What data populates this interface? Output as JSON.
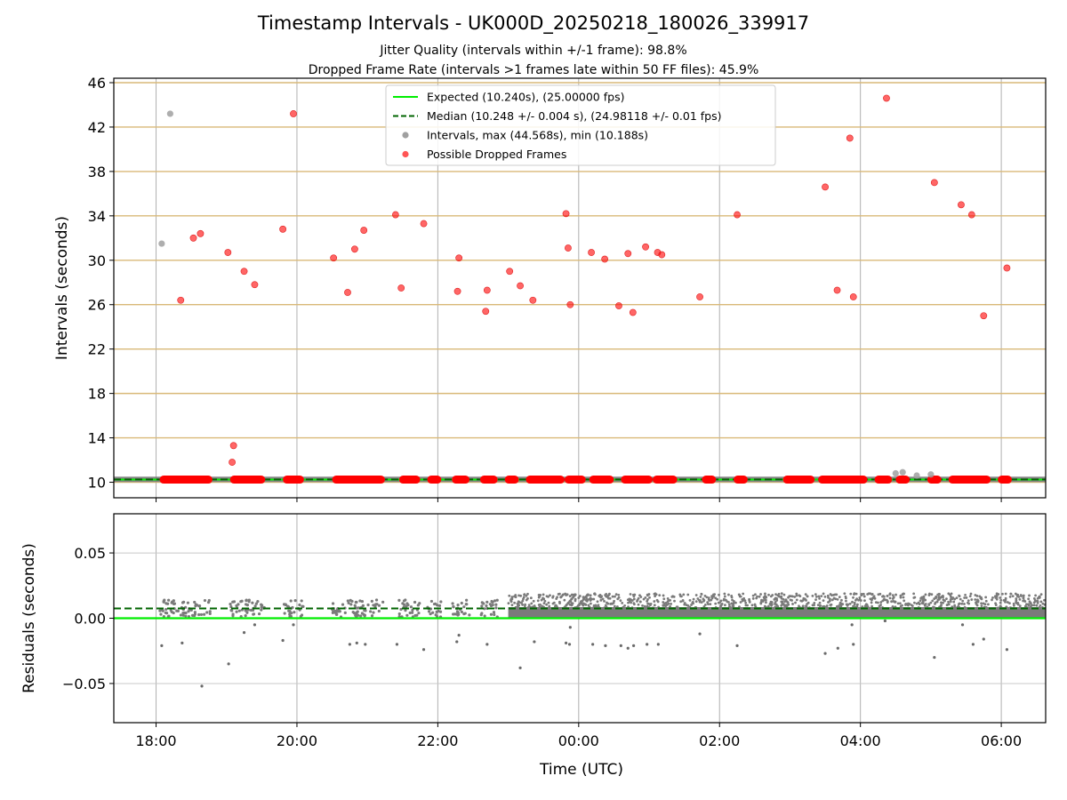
{
  "chart_data": [
    {
      "type": "scatter",
      "title": "Timestamp Intervals - UK000D_20250218_180026_339917",
      "subtitle_lines": [
        "Jitter Quality (intervals within +/-1 frame): 98.8%",
        "Dropped Frame Rate (intervals >1 frames late within 50 FF files): 45.9%"
      ],
      "ylabel": "Intervals (seconds)",
      "ylim": [
        8.6,
        46.4
      ],
      "yticks": [
        10,
        14,
        18,
        22,
        26,
        30,
        34,
        38,
        42,
        46
      ],
      "xlim": [
        -0.6,
        12.63
      ],
      "x_unit": "hours after 18:00 UTC",
      "xticks": [
        {
          "value": 0,
          "label": "18:00"
        },
        {
          "value": 2,
          "label": "20:00"
        },
        {
          "value": 4,
          "label": "22:00"
        },
        {
          "value": 6,
          "label": "00:00"
        },
        {
          "value": 8,
          "label": "02:00"
        },
        {
          "value": 10,
          "label": "04:00"
        },
        {
          "value": 12,
          "label": "06:00"
        }
      ],
      "grid": true,
      "legend_position": "top-center",
      "legend": [
        {
          "label": "Expected (10.240s), (25.00000 fps)",
          "style": "line",
          "color": "#00ee00"
        },
        {
          "label": "Median (10.248 +/- 0.004 s), (24.98118 +/- 0.01 fps)",
          "style": "dashed",
          "color": "#006400"
        },
        {
          "label": "Intervals, max (44.568s), min (10.188s)",
          "style": "marker",
          "color": "#a0a0a0"
        },
        {
          "label": "Possible Dropped Frames",
          "style": "marker",
          "color": "#ff5555"
        }
      ],
      "expected_interval": 10.24,
      "median_interval": 10.248,
      "band_segments_hours": [
        [
          0.05,
          0.8
        ],
        [
          1.05,
          1.55
        ],
        [
          1.8,
          2.1
        ],
        [
          2.5,
          3.25
        ],
        [
          3.45,
          3.75
        ],
        [
          3.85,
          4.05
        ],
        [
          4.2,
          4.45
        ],
        [
          4.6,
          4.85
        ],
        [
          4.95,
          5.15
        ],
        [
          5.25,
          5.8
        ],
        [
          5.8,
          6.1
        ],
        [
          6.15,
          6.5
        ],
        [
          6.6,
          7.05
        ],
        [
          7.05,
          7.4
        ],
        [
          7.75,
          7.95
        ],
        [
          8.2,
          8.4
        ],
        [
          8.9,
          9.35
        ],
        [
          9.4,
          10.1
        ],
        [
          10.2,
          10.45
        ],
        [
          10.5,
          10.7
        ],
        [
          10.95,
          11.15
        ],
        [
          11.25,
          11.85
        ],
        [
          11.95,
          12.15
        ]
      ],
      "dropped_frames": [
        {
          "x": 0.35,
          "y": 26.4
        },
        {
          "x": 0.53,
          "y": 32.0
        },
        {
          "x": 0.63,
          "y": 32.4
        },
        {
          "x": 1.02,
          "y": 30.7
        },
        {
          "x": 1.08,
          "y": 11.8
        },
        {
          "x": 1.1,
          "y": 13.3
        },
        {
          "x": 1.25,
          "y": 29.0
        },
        {
          "x": 1.4,
          "y": 27.8
        },
        {
          "x": 1.8,
          "y": 32.8
        },
        {
          "x": 1.95,
          "y": 43.2
        },
        {
          "x": 2.52,
          "y": 30.2
        },
        {
          "x": 2.72,
          "y": 27.1
        },
        {
          "x": 2.82,
          "y": 31.0
        },
        {
          "x": 2.95,
          "y": 32.7
        },
        {
          "x": 3.4,
          "y": 34.1
        },
        {
          "x": 3.48,
          "y": 27.5
        },
        {
          "x": 3.8,
          "y": 33.3
        },
        {
          "x": 4.28,
          "y": 27.2
        },
        {
          "x": 4.3,
          "y": 30.2
        },
        {
          "x": 4.68,
          "y": 25.4
        },
        {
          "x": 4.7,
          "y": 27.3
        },
        {
          "x": 5.02,
          "y": 29.0
        },
        {
          "x": 5.17,
          "y": 27.7
        },
        {
          "x": 5.35,
          "y": 26.4
        },
        {
          "x": 5.82,
          "y": 34.2
        },
        {
          "x": 5.85,
          "y": 31.1
        },
        {
          "x": 5.88,
          "y": 26.0
        },
        {
          "x": 6.18,
          "y": 30.7
        },
        {
          "x": 6.37,
          "y": 30.1
        },
        {
          "x": 6.57,
          "y": 25.9
        },
        {
          "x": 6.7,
          "y": 30.6
        },
        {
          "x": 6.77,
          "y": 25.3
        },
        {
          "x": 6.95,
          "y": 31.2
        },
        {
          "x": 7.12,
          "y": 30.7
        },
        {
          "x": 7.18,
          "y": 30.5
        },
        {
          "x": 7.72,
          "y": 26.7
        },
        {
          "x": 8.25,
          "y": 34.1
        },
        {
          "x": 9.5,
          "y": 36.6
        },
        {
          "x": 9.67,
          "y": 27.3
        },
        {
          "x": 9.85,
          "y": 41.0
        },
        {
          "x": 9.9,
          "y": 26.7
        },
        {
          "x": 10.37,
          "y": 44.6
        },
        {
          "x": 11.05,
          "y": 37.0
        },
        {
          "x": 11.43,
          "y": 35.0
        },
        {
          "x": 11.58,
          "y": 34.1
        },
        {
          "x": 11.75,
          "y": 25.0
        },
        {
          "x": 12.08,
          "y": 29.3
        }
      ],
      "gray_intervals": [
        {
          "x": 0.08,
          "y": 31.5
        },
        {
          "x": 0.2,
          "y": 43.2
        },
        {
          "x": 10.5,
          "y": 10.8
        },
        {
          "x": 10.6,
          "y": 10.9
        },
        {
          "x": 10.8,
          "y": 10.6
        },
        {
          "x": 11.0,
          "y": 10.7
        }
      ]
    },
    {
      "type": "scatter",
      "xlabel": "Time (UTC)",
      "ylabel": "Residuals (seconds)",
      "ylim": [
        -0.08,
        0.08
      ],
      "yticks": [
        {
          "value": 0.05,
          "label": "0.05"
        },
        {
          "value": 0.0,
          "label": "0.00"
        },
        {
          "value": -0.05,
          "label": "−0.05"
        }
      ],
      "expected_residual": 0.0,
      "median_residual": 0.0075,
      "dense_region_hours": [
        5.0,
        12.63
      ],
      "outliers": [
        {
          "x": 0.08,
          "y": -0.021
        },
        {
          "x": 0.37,
          "y": -0.019
        },
        {
          "x": 0.65,
          "y": -0.052
        },
        {
          "x": 1.03,
          "y": -0.035
        },
        {
          "x": 1.25,
          "y": -0.011
        },
        {
          "x": 1.4,
          "y": -0.005
        },
        {
          "x": 1.8,
          "y": -0.017
        },
        {
          "x": 1.95,
          "y": -0.005
        },
        {
          "x": 2.75,
          "y": -0.02
        },
        {
          "x": 2.85,
          "y": -0.019
        },
        {
          "x": 2.97,
          "y": -0.02
        },
        {
          "x": 3.42,
          "y": -0.02
        },
        {
          "x": 3.8,
          "y": -0.024
        },
        {
          "x": 4.27,
          "y": -0.018
        },
        {
          "x": 4.3,
          "y": -0.013
        },
        {
          "x": 4.7,
          "y": -0.02
        },
        {
          "x": 5.17,
          "y": -0.038
        },
        {
          "x": 5.37,
          "y": -0.018
        },
        {
          "x": 5.82,
          "y": -0.019
        },
        {
          "x": 5.87,
          "y": -0.02
        },
        {
          "x": 5.88,
          "y": -0.007
        },
        {
          "x": 6.2,
          "y": -0.02
        },
        {
          "x": 6.38,
          "y": -0.021
        },
        {
          "x": 6.6,
          "y": -0.021
        },
        {
          "x": 6.7,
          "y": -0.023
        },
        {
          "x": 6.78,
          "y": -0.021
        },
        {
          "x": 6.97,
          "y": -0.02
        },
        {
          "x": 7.13,
          "y": -0.02
        },
        {
          "x": 7.72,
          "y": -0.012
        },
        {
          "x": 8.25,
          "y": -0.021
        },
        {
          "x": 9.5,
          "y": -0.027
        },
        {
          "x": 9.68,
          "y": -0.023
        },
        {
          "x": 9.88,
          "y": -0.005
        },
        {
          "x": 9.9,
          "y": -0.02
        },
        {
          "x": 10.35,
          "y": -0.002
        },
        {
          "x": 11.05,
          "y": -0.03
        },
        {
          "x": 11.45,
          "y": -0.005
        },
        {
          "x": 11.6,
          "y": -0.02
        },
        {
          "x": 11.75,
          "y": -0.016
        },
        {
          "x": 12.08,
          "y": -0.024
        }
      ]
    }
  ]
}
